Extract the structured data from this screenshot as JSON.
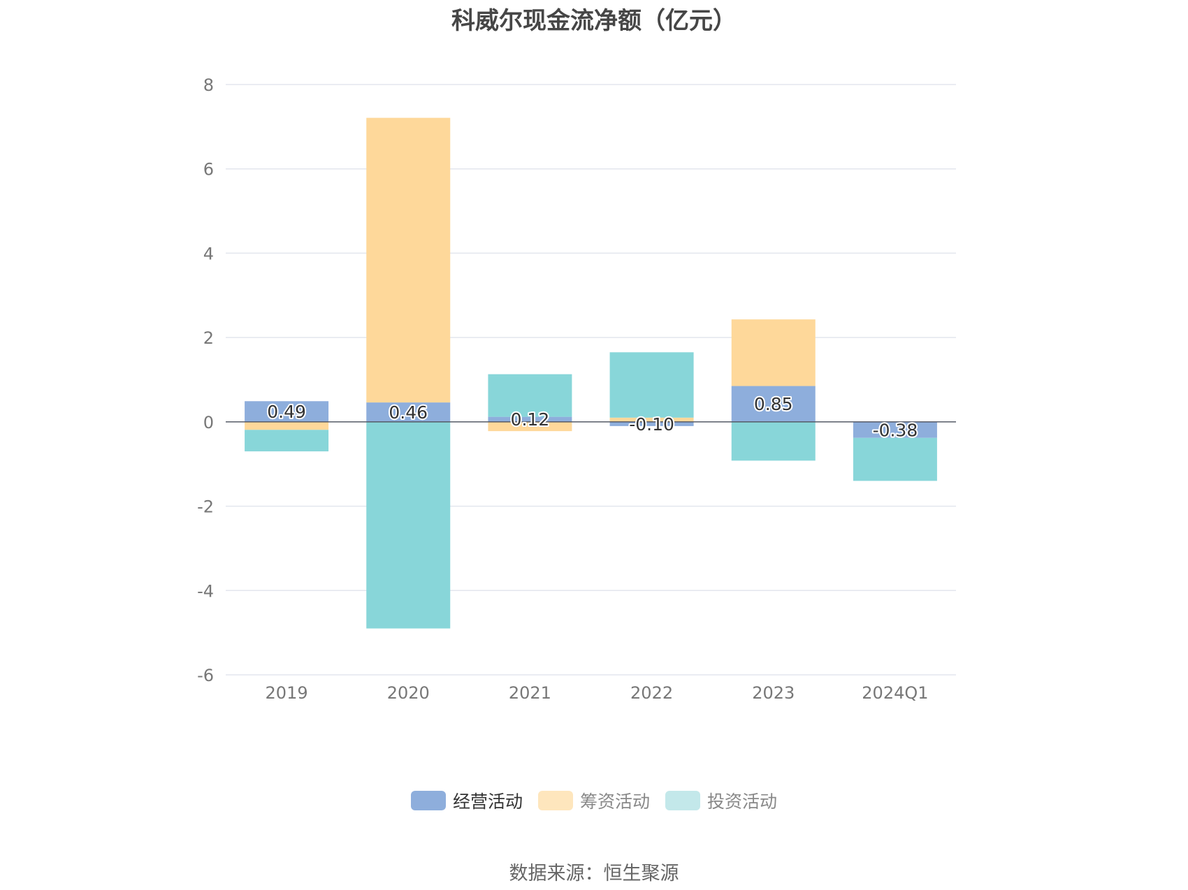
{
  "title": "科威尔现金流净额（亿元）",
  "source_note": "数据来源：恒生聚源",
  "legend": [
    {
      "label": "经营活动",
      "color": "#8eaedc",
      "text_color": "#333333"
    },
    {
      "label": "筹资活动",
      "color": "#fee6bd",
      "text_color": "#888888"
    },
    {
      "label": "投资活动",
      "color": "#c3e8ea",
      "text_color": "#888888"
    }
  ],
  "chart_data": {
    "type": "bar",
    "stacked": true,
    "title": "科威尔现金流净额（亿元）",
    "categories": [
      "2019",
      "2020",
      "2021",
      "2022",
      "2023",
      "2024Q1"
    ],
    "series": [
      {
        "name": "经营活动",
        "color": "#8eaedc",
        "values": [
          0.49,
          0.46,
          0.12,
          -0.1,
          0.85,
          -0.38
        ]
      },
      {
        "name": "筹资活动",
        "color": "#fed89a",
        "values": [
          -0.19,
          6.75,
          -0.22,
          0.1,
          1.58,
          0
        ]
      },
      {
        "name": "投资活动",
        "color": "#88d6d9",
        "values": [
          -0.51,
          -4.9,
          1.01,
          1.55,
          -0.92,
          -1.02
        ]
      }
    ],
    "data_labels": [
      "0.49",
      "0.46",
      "0.12",
      "-0.10",
      "0.85",
      "-0.38"
    ],
    "yticks": [
      "8",
      "6",
      "4",
      "2",
      "0",
      "-2",
      "-4",
      "-6"
    ],
    "ylim": [
      -6,
      8
    ],
    "grid": true,
    "legend_position": "bottom"
  }
}
